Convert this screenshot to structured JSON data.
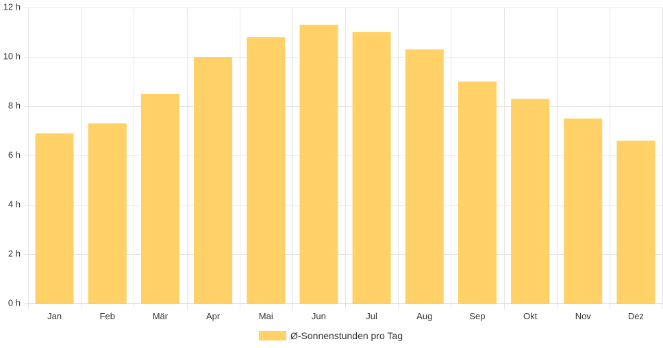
{
  "chart_data": {
    "type": "bar",
    "categories": [
      "Jan",
      "Feb",
      "Mär",
      "Apr",
      "Mai",
      "Jun",
      "Jul",
      "Aug",
      "Sep",
      "Okt",
      "Nov",
      "Dez"
    ],
    "series": [
      {
        "name": "Ø-Sonnenstunden pro Tag",
        "values": [
          6.9,
          7.3,
          8.5,
          10.0,
          10.8,
          11.3,
          11.0,
          10.3,
          9.0,
          8.3,
          7.5,
          6.6
        ],
        "color": "#ffd166"
      }
    ],
    "yticks": [
      "0 h",
      "2 h",
      "4 h",
      "6 h",
      "8 h",
      "10 h",
      "12 h"
    ],
    "ylim": [
      0,
      12
    ],
    "grid": true,
    "legend": "bottom-center"
  }
}
